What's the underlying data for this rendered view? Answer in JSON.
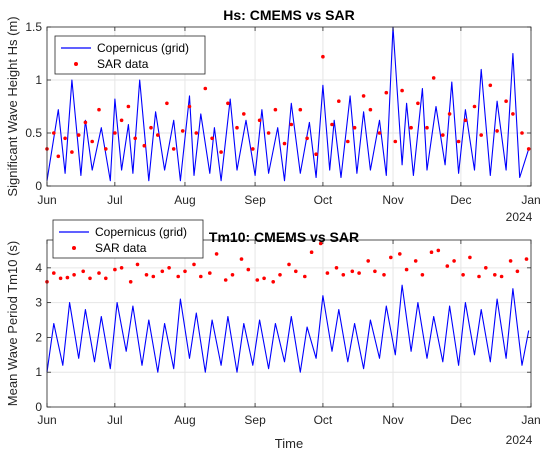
{
  "chart_data": [
    {
      "type": "line",
      "title": "Hs: CMEMS vs SAR",
      "xlabel": "",
      "ylabel": "Significant Wave Height Hs (m)",
      "year_label": "2024",
      "xlim": [
        "2024-06-01",
        "2025-01-01"
      ],
      "ylim": [
        0,
        1.5
      ],
      "x_ticks": [
        "Jun",
        "Jul",
        "Aug",
        "Sep",
        "Oct",
        "Nov",
        "Dec",
        "Jan"
      ],
      "y_ticks": [
        "0",
        "0.5",
        "1",
        "1.5"
      ],
      "y_tick_values": [
        0,
        0.5,
        1,
        1.5
      ],
      "grid": true,
      "legend_position": "top-left",
      "series": [
        {
          "name": "Copernicus (grid)",
          "kind": "line",
          "color": "#0000ff",
          "x": [
            "2024-06-01",
            "2024-06-06",
            "2024-06-09",
            "2024-06-12",
            "2024-06-16",
            "2024-06-18",
            "2024-06-21",
            "2024-06-25",
            "2024-06-29",
            "2024-07-01",
            "2024-07-04",
            "2024-07-07",
            "2024-07-09",
            "2024-07-12",
            "2024-07-16",
            "2024-07-19",
            "2024-07-23",
            "2024-07-27",
            "2024-07-30",
            "2024-08-03",
            "2024-08-05",
            "2024-08-08",
            "2024-08-12",
            "2024-08-14",
            "2024-08-17",
            "2024-08-21",
            "2024-08-24",
            "2024-08-28",
            "2024-09-01",
            "2024-09-04",
            "2024-09-07",
            "2024-09-11",
            "2024-09-14",
            "2024-09-17",
            "2024-09-21",
            "2024-09-25",
            "2024-09-28",
            "2024-10-01",
            "2024-10-04",
            "2024-10-06",
            "2024-10-09",
            "2024-10-13",
            "2024-10-16",
            "2024-10-19",
            "2024-10-22",
            "2024-10-26",
            "2024-10-29",
            "2024-11-01",
            "2024-11-05",
            "2024-11-07",
            "2024-11-10",
            "2024-11-14",
            "2024-11-16",
            "2024-11-20",
            "2024-11-24",
            "2024-11-27",
            "2024-11-30",
            "2024-12-03",
            "2024-12-07",
            "2024-12-10",
            "2024-12-14",
            "2024-12-17",
            "2024-12-21",
            "2024-12-24",
            "2024-12-27",
            "2024-12-31"
          ],
          "values": [
            0.05,
            0.72,
            0.12,
            1.0,
            0.1,
            0.62,
            0.15,
            0.55,
            0.05,
            0.82,
            0.15,
            0.58,
            0.12,
            1.0,
            0.05,
            0.7,
            0.15,
            0.62,
            0.05,
            0.85,
            0.1,
            0.68,
            0.12,
            0.55,
            0.05,
            0.82,
            0.15,
            0.62,
            0.1,
            0.72,
            0.12,
            0.55,
            0.05,
            0.78,
            0.12,
            0.6,
            0.08,
            0.95,
            0.15,
            0.62,
            0.08,
            0.85,
            0.12,
            0.7,
            0.15,
            0.62,
            0.1,
            1.5,
            0.2,
            0.78,
            0.1,
            0.92,
            0.15,
            0.75,
            0.2,
            0.98,
            0.12,
            0.72,
            0.15,
            1.1,
            0.1,
            0.8,
            0.15,
            1.25,
            0.08,
            0.35
          ]
        },
        {
          "name": "SAR data",
          "kind": "scatter",
          "color": "#ff0000",
          "x": [
            "2024-06-01",
            "2024-06-04",
            "2024-06-06",
            "2024-06-09",
            "2024-06-12",
            "2024-06-15",
            "2024-06-18",
            "2024-06-21",
            "2024-06-24",
            "2024-06-27",
            "2024-07-01",
            "2024-07-04",
            "2024-07-07",
            "2024-07-10",
            "2024-07-14",
            "2024-07-17",
            "2024-07-20",
            "2024-07-24",
            "2024-07-27",
            "2024-07-31",
            "2024-08-03",
            "2024-08-06",
            "2024-08-10",
            "2024-08-13",
            "2024-08-17",
            "2024-08-20",
            "2024-08-24",
            "2024-08-27",
            "2024-08-31",
            "2024-09-03",
            "2024-09-07",
            "2024-09-10",
            "2024-09-14",
            "2024-09-17",
            "2024-09-21",
            "2024-09-24",
            "2024-09-28",
            "2024-10-01",
            "2024-10-05",
            "2024-10-08",
            "2024-10-12",
            "2024-10-15",
            "2024-10-19",
            "2024-10-22",
            "2024-10-26",
            "2024-10-29",
            "2024-11-02",
            "2024-11-05",
            "2024-11-09",
            "2024-11-12",
            "2024-11-16",
            "2024-11-19",
            "2024-11-23",
            "2024-11-26",
            "2024-11-30",
            "2024-12-03",
            "2024-12-07",
            "2024-12-10",
            "2024-12-14",
            "2024-12-17",
            "2024-12-21",
            "2024-12-24",
            "2024-12-28",
            "2024-12-31"
          ],
          "values": [
            0.35,
            0.5,
            0.28,
            0.45,
            0.32,
            0.48,
            0.6,
            0.42,
            0.72,
            0.35,
            0.5,
            0.62,
            0.75,
            0.45,
            0.38,
            0.55,
            0.48,
            0.78,
            0.35,
            0.52,
            0.75,
            0.5,
            0.92,
            0.45,
            0.32,
            0.78,
            0.55,
            0.68,
            0.35,
            0.62,
            0.5,
            0.72,
            0.4,
            0.58,
            0.72,
            0.45,
            0.3,
            1.22,
            0.58,
            0.8,
            0.42,
            0.55,
            0.85,
            0.72,
            0.5,
            0.88,
            0.42,
            0.9,
            0.55,
            0.78,
            0.55,
            1.02,
            0.48,
            0.68,
            0.42,
            0.62,
            0.75,
            0.48,
            0.95,
            0.52,
            0.8,
            0.68,
            0.5,
            0.35
          ]
        }
      ]
    },
    {
      "type": "line",
      "title": "Tm10: CMEMS vs SAR",
      "xlabel": "Time",
      "ylabel": "Mean Wave Period Tm10 (s)",
      "year_label": "2024",
      "xlim": [
        "2024-06-01",
        "2025-01-01"
      ],
      "ylim": [
        0,
        4.8
      ],
      "x_ticks": [
        "Jun",
        "Jul",
        "Aug",
        "Sep",
        "Oct",
        "Nov",
        "Dec",
        "Jan"
      ],
      "y_ticks": [
        "0",
        "1",
        "2",
        "3",
        "4"
      ],
      "y_tick_values": [
        0,
        1,
        2,
        3,
        4
      ],
      "grid": true,
      "legend_position": "top-left",
      "series": [
        {
          "name": "Copernicus (grid)",
          "kind": "line",
          "color": "#0000ff",
          "x": [
            "2024-06-01",
            "2024-06-04",
            "2024-06-08",
            "2024-06-11",
            "2024-06-15",
            "2024-06-18",
            "2024-06-22",
            "2024-06-25",
            "2024-06-29",
            "2024-07-02",
            "2024-07-06",
            "2024-07-09",
            "2024-07-13",
            "2024-07-16",
            "2024-07-20",
            "2024-07-23",
            "2024-07-27",
            "2024-07-30",
            "2024-08-03",
            "2024-08-06",
            "2024-08-10",
            "2024-08-13",
            "2024-08-17",
            "2024-08-20",
            "2024-08-24",
            "2024-08-27",
            "2024-08-31",
            "2024-09-03",
            "2024-09-07",
            "2024-09-10",
            "2024-09-14",
            "2024-09-17",
            "2024-09-21",
            "2024-09-24",
            "2024-09-28",
            "2024-10-01",
            "2024-10-05",
            "2024-10-08",
            "2024-10-12",
            "2024-10-15",
            "2024-10-19",
            "2024-10-22",
            "2024-10-26",
            "2024-10-29",
            "2024-11-02",
            "2024-11-05",
            "2024-11-09",
            "2024-11-12",
            "2024-11-16",
            "2024-11-19",
            "2024-11-23",
            "2024-11-26",
            "2024-11-30",
            "2024-12-03",
            "2024-12-07",
            "2024-12-10",
            "2024-12-14",
            "2024-12-17",
            "2024-12-21",
            "2024-12-24",
            "2024-12-28",
            "2024-12-31"
          ],
          "values": [
            1.0,
            2.4,
            1.2,
            3.0,
            1.4,
            2.8,
            1.3,
            2.6,
            1.1,
            3.0,
            1.6,
            2.9,
            1.2,
            2.5,
            1.0,
            2.4,
            1.1,
            3.1,
            1.4,
            2.7,
            1.0,
            2.5,
            1.2,
            2.6,
            1.0,
            2.4,
            1.2,
            2.5,
            1.1,
            2.4,
            1.3,
            2.6,
            1.0,
            2.3,
            1.4,
            3.2,
            1.6,
            2.8,
            1.3,
            2.4,
            1.1,
            2.5,
            1.4,
            2.9,
            1.5,
            3.5,
            1.6,
            3.0,
            1.4,
            2.6,
            1.3,
            2.9,
            1.2,
            3.0,
            1.5,
            2.8,
            1.3,
            3.1,
            1.4,
            3.4,
            1.2,
            2.2
          ]
        },
        {
          "name": "SAR data",
          "kind": "scatter",
          "color": "#ff0000",
          "x": [
            "2024-06-01",
            "2024-06-04",
            "2024-06-07",
            "2024-06-10",
            "2024-06-13",
            "2024-06-17",
            "2024-06-20",
            "2024-06-24",
            "2024-06-27",
            "2024-07-01",
            "2024-07-04",
            "2024-07-08",
            "2024-07-11",
            "2024-07-15",
            "2024-07-18",
            "2024-07-22",
            "2024-07-25",
            "2024-07-29",
            "2024-08-01",
            "2024-08-05",
            "2024-08-08",
            "2024-08-12",
            "2024-08-15",
            "2024-08-19",
            "2024-08-22",
            "2024-08-26",
            "2024-08-29",
            "2024-09-02",
            "2024-09-05",
            "2024-09-09",
            "2024-09-12",
            "2024-09-16",
            "2024-09-19",
            "2024-09-23",
            "2024-09-26",
            "2024-09-30",
            "2024-10-03",
            "2024-10-07",
            "2024-10-10",
            "2024-10-14",
            "2024-10-17",
            "2024-10-21",
            "2024-10-24",
            "2024-10-28",
            "2024-10-31",
            "2024-11-04",
            "2024-11-07",
            "2024-11-11",
            "2024-11-14",
            "2024-11-18",
            "2024-11-21",
            "2024-11-25",
            "2024-11-28",
            "2024-12-02",
            "2024-12-05",
            "2024-12-09",
            "2024-12-12",
            "2024-12-16",
            "2024-12-19",
            "2024-12-23",
            "2024-12-26",
            "2024-12-30"
          ],
          "values": [
            3.6,
            3.85,
            3.7,
            3.72,
            3.8,
            3.9,
            3.7,
            3.85,
            3.7,
            3.95,
            4.0,
            3.6,
            4.1,
            3.8,
            3.75,
            3.9,
            4.0,
            3.75,
            3.9,
            4.1,
            3.75,
            3.85,
            4.4,
            3.65,
            3.8,
            4.25,
            3.95,
            3.65,
            3.7,
            3.6,
            3.8,
            4.1,
            3.9,
            3.75,
            4.45,
            4.7,
            3.85,
            4.0,
            3.8,
            3.9,
            3.85,
            4.2,
            3.9,
            3.8,
            4.3,
            4.4,
            3.95,
            4.2,
            3.8,
            4.45,
            4.5,
            4.05,
            4.2,
            3.8,
            4.3,
            3.75,
            4.0,
            3.8,
            3.75,
            4.2,
            3.9,
            4.25
          ]
        }
      ]
    }
  ]
}
